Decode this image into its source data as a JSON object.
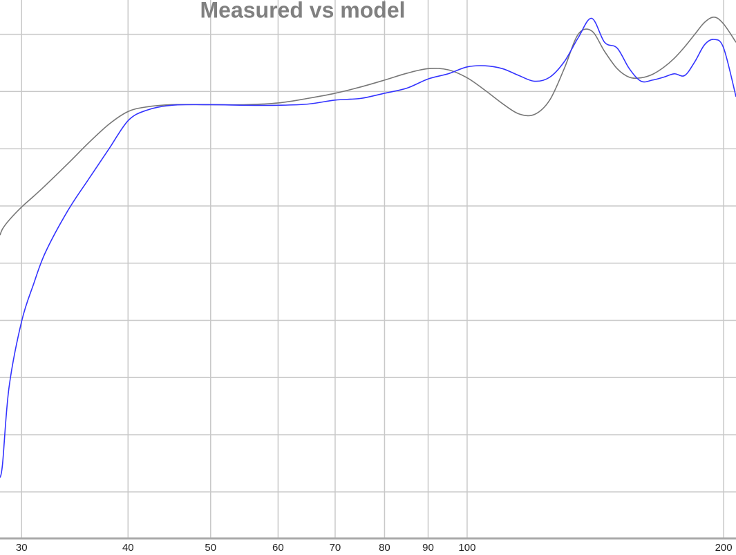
{
  "chart_data": {
    "type": "line",
    "title": "Measured vs model",
    "x": [
      28.3,
      28.5,
      29,
      30,
      31,
      32,
      34,
      36,
      38,
      40,
      42,
      45,
      50,
      55,
      60,
      65,
      70,
      75,
      80,
      85,
      90,
      95,
      100,
      105,
      110,
      115,
      120,
      125,
      130,
      135,
      140,
      145,
      150,
      155,
      160,
      165,
      170,
      175,
      180,
      185,
      190,
      195,
      200,
      206.8
    ],
    "series": [
      {
        "color": "#3333ff",
        "values": [
          0.25,
          0.5,
          1.83,
          2.98,
          3.64,
          4.19,
          4.92,
          5.48,
          6.0,
          6.49,
          6.67,
          6.76,
          6.77,
          6.76,
          6.76,
          6.78,
          6.85,
          6.88,
          6.97,
          7.06,
          7.22,
          7.31,
          7.43,
          7.45,
          7.4,
          7.28,
          7.18,
          7.25,
          7.52,
          7.94,
          8.28,
          7.86,
          7.76,
          7.4,
          7.18,
          7.2,
          7.25,
          7.31,
          7.28,
          7.52,
          7.82,
          7.91,
          7.76,
          6.91
        ]
      },
      {
        "color": "#777777",
        "values": [
          4.49,
          4.6,
          4.75,
          4.98,
          5.17,
          5.36,
          5.74,
          6.11,
          6.43,
          6.65,
          6.73,
          6.77,
          6.77,
          6.77,
          6.8,
          6.88,
          6.97,
          7.08,
          7.2,
          7.32,
          7.4,
          7.38,
          7.24,
          7.02,
          6.79,
          6.61,
          6.6,
          6.85,
          7.4,
          8.0,
          8.06,
          7.7,
          7.4,
          7.25,
          7.24,
          7.3,
          7.42,
          7.58,
          7.78,
          8.0,
          8.21,
          8.3,
          8.18,
          7.86
        ]
      }
    ],
    "xscale": "log",
    "xlim": [
      28.3,
      206.8
    ],
    "xticks": [
      30,
      40,
      50,
      60,
      70,
      80,
      90,
      100,
      200
    ],
    "ylim": [
      -0.8,
      8.6
    ],
    "yticks": [
      0,
      1,
      2,
      3,
      4,
      5,
      6,
      7,
      8
    ],
    "grid": true
  }
}
